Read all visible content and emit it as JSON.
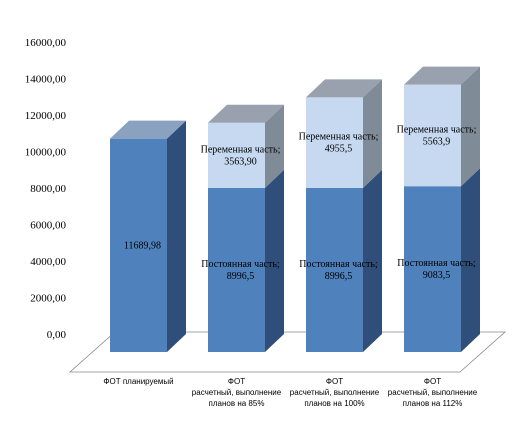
{
  "chart_data": {
    "type": "bar",
    "stacked": true,
    "three_d": true,
    "title": "",
    "xlabel": "",
    "ylabel": "",
    "ylim": [
      0,
      16000
    ],
    "yticks": [
      "0,00",
      "2000,00",
      "4000,00",
      "6000,00",
      "8000,00",
      "10000,00",
      "12000,00",
      "14000,00",
      "16000,00"
    ],
    "grid": false,
    "legend": "none",
    "categories": [
      [
        "ФОТ планируемый"
      ],
      [
        "ФОТ",
        "расчетный, выполнение",
        "планов на 85%"
      ],
      [
        "ФОТ",
        "расчетный, выполнение",
        "планов на 100%"
      ],
      [
        "ФОТ",
        "расчетный, выполнение",
        "планов на 112%"
      ]
    ],
    "series": [
      {
        "values": [
          11689.98,
          8996.5,
          8996.5,
          9083.5
        ],
        "labels": [
          [
            "11689,98"
          ],
          [
            "Постоянная часть;",
            "8996,5"
          ],
          [
            "Постоянная часть;",
            "8996,5"
          ],
          [
            "Постоянная часть;",
            "9083,5"
          ]
        ],
        "colors": {
          "front": "#4f81bd",
          "side": "#2f4f7a",
          "top": "#8aa1c0"
        }
      },
      {
        "values": [
          0,
          3563.9,
          4955.5,
          5563.9
        ],
        "labels": [
          [],
          [
            "Переменная часть;",
            "3563,90"
          ],
          [
            "Переменная часть;",
            "4955,5"
          ],
          [
            "Переменная часть;",
            "5563,9"
          ]
        ],
        "colors": {
          "front": "#c6d9f1",
          "side": "#808b98",
          "top": "#98a1ad"
        }
      }
    ]
  }
}
